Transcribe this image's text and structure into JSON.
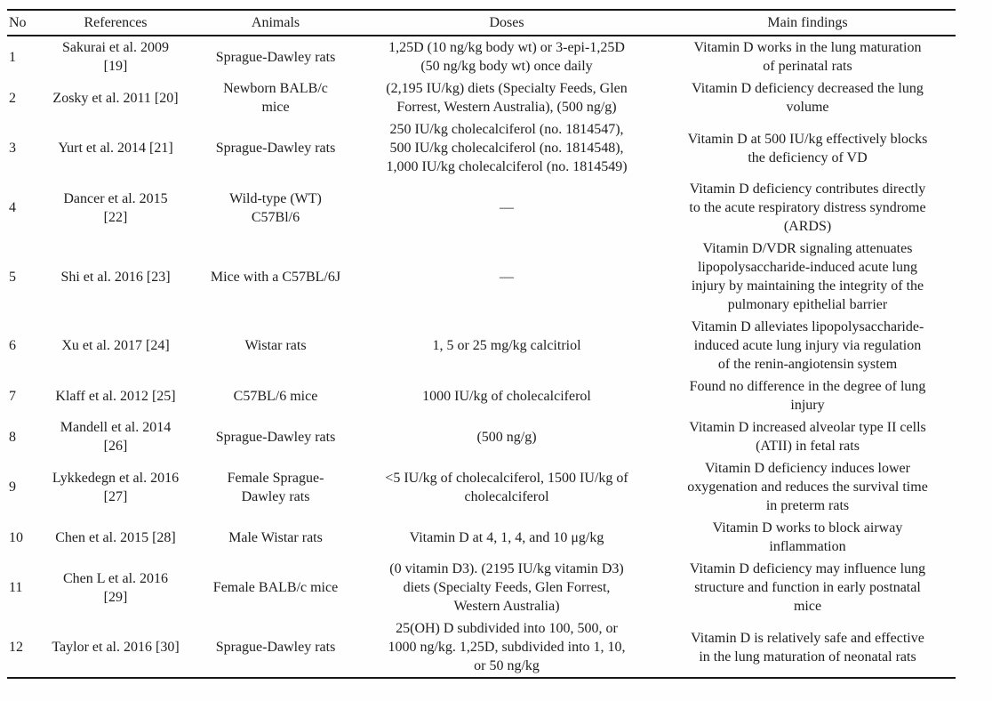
{
  "page": {
    "background_color": "#fefefe",
    "text_color": "#1e1e1e",
    "rule_color": "#161616"
  },
  "table": {
    "columns": [
      "No",
      "References",
      "Animals",
      "Doses",
      "Main findings"
    ],
    "rows": [
      {
        "no": "1",
        "references": "Sakurai et al. 2009\n[19]",
        "animals": "Sprague-Dawley rats",
        "doses": "1,25D (10 ng/kg body wt) or 3-epi-1,25D\n(50 ng/kg body wt) once daily",
        "findings": "Vitamin D works in the lung maturation\nof perinatal rats"
      },
      {
        "no": "2",
        "references": "Zosky et al. 2011 [20]",
        "animals": "Newborn BALB/c\nmice",
        "doses": "(2,195 IU/kg) diets (Specialty Feeds, Glen\nForrest, Western Australia), (500 ng/g)",
        "findings": "Vitamin D deficiency decreased the lung\nvolume"
      },
      {
        "no": "3",
        "references": "Yurt et al. 2014 [21]",
        "animals": "Sprague-Dawley rats",
        "doses": "250 IU/kg cholecalciferol (no. 1814547),\n500 IU/kg cholecalciferol (no. 1814548),\n1,000 IU/kg cholecalciferol (no. 1814549)",
        "findings": "Vitamin D at 500 IU/kg effectively blocks\nthe deficiency of VD"
      },
      {
        "no": "4",
        "references": "Dancer et al. 2015\n[22]",
        "animals": "Wild-type (WT)\nC57Bl/6",
        "doses": "—",
        "findings": "Vitamin D deficiency contributes directly\nto the acute respiratory distress syndrome\n(ARDS)"
      },
      {
        "no": "5",
        "references": "Shi et al. 2016 [23]",
        "animals": "Mice with a C57BL/6J",
        "doses": "—",
        "findings": "Vitamin D/VDR signaling attenuates\nlipopolysaccharide-induced acute lung\ninjury by maintaining the integrity of the\npulmonary epithelial barrier"
      },
      {
        "no": "6",
        "references": "Xu et al. 2017 [24]",
        "animals": "Wistar rats",
        "doses": "1, 5 or 25 mg/kg calcitriol",
        "findings": "Vitamin D alleviates lipopolysaccharide-\ninduced acute lung injury via regulation\nof the renin-angiotensin system"
      },
      {
        "no": "7",
        "references": "Klaff et al. 2012 [25]",
        "animals": "C57BL/6 mice",
        "doses": "1000 IU/kg of cholecalciferol",
        "findings": "Found no difference in the degree of lung\ninjury"
      },
      {
        "no": "8",
        "references": "Mandell et al. 2014\n[26]",
        "animals": "Sprague-Dawley rats",
        "doses": "(500 ng/g)",
        "findings": "Vitamin D increased alveolar type II cells\n(ATII) in fetal rats"
      },
      {
        "no": "9",
        "references": "Lykkedegn et al. 2016\n[27]",
        "animals": "Female Sprague-\nDawley rats",
        "doses": "<5 IU/kg of cholecalciferol, 1500 IU/kg of\ncholecalciferol",
        "findings": "Vitamin D deficiency induces lower\noxygenation and reduces the survival time\nin preterm rats"
      },
      {
        "no": "10",
        "references": "Chen et al. 2015 [28]",
        "animals": "Male Wistar rats",
        "doses": "Vitamin D at 4, 1, 4, and 10 μg/kg",
        "findings": "Vitamin D works to block airway\ninflammation"
      },
      {
        "no": "11",
        "references": "Chen L et al. 2016\n[29]",
        "animals": "Female BALB/c mice",
        "doses": "(0 vitamin D3). (2195 IU/kg vitamin D3)\ndiets (Specialty Feeds, Glen Forrest,\nWestern Australia)",
        "findings": "Vitamin D deficiency may influence lung\nstructure and function in early postnatal\nmice"
      },
      {
        "no": "12",
        "references": "Taylor et al. 2016 [30]",
        "animals": "Sprague-Dawley rats",
        "doses": "25(OH) D subdivided into 100, 500, or\n1000 ng/kg. 1,25D, subdivided into 1, 10,\nor 50 ng/kg",
        "findings": "Vitamin D is relatively safe and effective\nin the lung maturation of neonatal rats"
      }
    ]
  }
}
